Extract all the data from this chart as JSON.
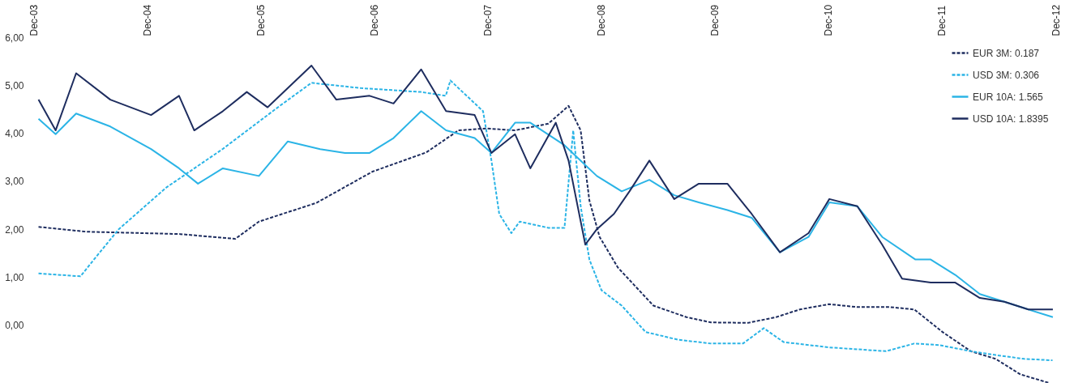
{
  "chart_data": {
    "type": "line",
    "legend": "top right",
    "grid": false,
    "xlim": [
      "2003-12-15",
      "2012-12-15"
    ],
    "ylim": [
      -1.2,
      6
    ],
    "yticks": [
      {
        "value": 0,
        "label": "0,00"
      },
      {
        "value": 1,
        "label": "1,00"
      },
      {
        "value": 2,
        "label": "2,00"
      },
      {
        "value": 3,
        "label": "3,00"
      },
      {
        "value": 4,
        "label": "4,00"
      },
      {
        "value": 5,
        "label": "5,00"
      },
      {
        "value": 6,
        "label": "6,00"
      }
    ],
    "xticks": [
      {
        "value": "2003-12-15",
        "label": "Dec-03"
      },
      {
        "value": "2004-12-15",
        "label": "Dec-04"
      },
      {
        "value": "2005-12-15",
        "label": "Dec-05"
      },
      {
        "value": "2006-12-15",
        "label": "Dec-06"
      },
      {
        "value": "2007-12-15",
        "label": "Dec-07"
      },
      {
        "value": "2008-12-15",
        "label": "Dec-08"
      },
      {
        "value": "2009-12-15",
        "label": "Dec-09"
      },
      {
        "value": "2010-12-15",
        "label": "Dec-10"
      },
      {
        "value": "2011-12-15",
        "label": "Dec-11"
      },
      {
        "value": "2012-12-15",
        "label": "Dec-12"
      }
    ],
    "series": [
      {
        "name": "EUR 3M: 0.187",
        "color": "#1e2d5f",
        "line_style": "dashed",
        "x": [
          "2004-01-01",
          "2004-06-01",
          "2005-04-01",
          "2005-09-25",
          "2005-12-10",
          "2006-06-13",
          "2006-12-10",
          "2007-06-01",
          "2007-09-13",
          "2007-12-10",
          "2008-03-13",
          "2008-06-28",
          "2008-09-01",
          "2008-10-10",
          "2008-11-07",
          "2008-12-10",
          "2009-02-07",
          "2009-06-01",
          "2009-09-15",
          "2009-12-03",
          "2010-04-01",
          "2010-07-01",
          "2010-09-15",
          "2010-12-18",
          "2011-03-18",
          "2011-07-01",
          "2011-09-18",
          "2011-12-18",
          "2012-03-18",
          "2012-06-06",
          "2012-08-24",
          "2012-11-24"
        ],
        "values": [
          2.05,
          1.95,
          1.9,
          1.8,
          2.16,
          2.55,
          3.2,
          3.6,
          4.06,
          4.1,
          4.06,
          4.2,
          4.57,
          4.06,
          2.6,
          1.84,
          1.2,
          0.41,
          0.17,
          0.06,
          0.05,
          0.17,
          0.33,
          0.44,
          0.38,
          0.38,
          0.33,
          -0.14,
          -0.54,
          -0.7,
          -1.02,
          -1.2
        ]
      },
      {
        "name": "USD 3M: 0.306",
        "color": "#2bb4e6",
        "line_style": "dashed",
        "x": [
          "2004-01-01",
          "2004-05-15",
          "2004-07-01",
          "2004-09-15",
          "2005-02-15",
          "2005-08-15",
          "2006-02-15",
          "2006-05-28",
          "2006-11-03",
          "2007-05-15",
          "2007-08-03",
          "2007-08-18",
          "2007-09-13",
          "2007-12-01",
          "2007-12-28",
          "2008-01-22",
          "2008-03-01",
          "2008-03-28",
          "2008-06-28",
          "2008-08-19",
          "2008-09-16",
          "2008-10-10",
          "2008-11-07",
          "2008-12-16",
          "2009-02-19",
          "2009-05-07",
          "2009-08-19",
          "2009-12-03",
          "2010-03-16",
          "2010-05-22",
          "2010-07-25",
          "2010-12-18",
          "2011-06-19",
          "2011-09-18",
          "2011-12-06",
          "2012-03-18",
          "2012-06-06",
          "2012-09-06",
          "2012-12-06"
        ],
        "values": [
          1.08,
          1.02,
          1.4,
          2.0,
          2.87,
          3.67,
          4.57,
          5.05,
          4.94,
          4.86,
          4.78,
          5.1,
          4.94,
          4.46,
          3.43,
          2.32,
          1.92,
          2.16,
          2.03,
          2.03,
          4.06,
          2.48,
          1.37,
          0.73,
          0.41,
          -0.14,
          -0.3,
          -0.38,
          -0.38,
          -0.06,
          -0.35,
          -0.46,
          -0.54,
          -0.38,
          -0.41,
          -0.54,
          -0.62,
          -0.7,
          -0.73
        ]
      },
      {
        "name": "EUR 10A: 1.565",
        "color": "#2bb4e6",
        "line_style": "solid",
        "x": [
          "2004-01-01",
          "2004-02-25",
          "2004-05-01",
          "2004-08-19",
          "2004-12-28",
          "2005-03-28",
          "2005-05-28",
          "2005-08-16",
          "2005-12-10",
          "2006-03-13",
          "2006-06-25",
          "2006-09-13",
          "2006-12-01",
          "2007-02-16",
          "2007-05-16",
          "2007-08-04",
          "2007-11-04",
          "2007-12-28",
          "2008-03-13",
          "2008-05-01",
          "2008-08-19",
          "2008-10-10",
          "2008-12-01",
          "2009-02-19",
          "2009-05-19",
          "2009-08-07",
          "2009-10-25",
          "2010-01-25",
          "2010-04-13",
          "2010-07-13",
          "2010-10-13",
          "2010-12-19",
          "2011-03-19",
          "2011-06-07",
          "2011-09-22",
          "2011-11-10",
          "2012-01-28",
          "2012-04-16",
          "2012-07-04",
          "2012-09-19",
          "2012-12-07"
        ],
        "values": [
          4.3,
          3.98,
          4.41,
          4.14,
          3.67,
          3.27,
          2.95,
          3.27,
          3.11,
          3.83,
          3.67,
          3.59,
          3.59,
          3.9,
          4.46,
          4.06,
          3.9,
          3.59,
          4.22,
          4.22,
          3.75,
          3.43,
          3.11,
          2.79,
          3.03,
          2.71,
          2.56,
          2.4,
          2.24,
          1.52,
          1.84,
          2.56,
          2.48,
          1.84,
          1.37,
          1.37,
          1.05,
          0.65,
          0.49,
          0.33,
          0.17
        ]
      },
      {
        "name": "USD 10A: 1.8395",
        "color": "#1e2d5f",
        "line_style": "solid",
        "x": [
          "2004-01-01",
          "2004-02-25",
          "2004-05-01",
          "2004-08-19",
          "2004-12-28",
          "2005-03-28",
          "2005-05-16",
          "2005-08-16",
          "2005-11-01",
          "2006-01-07",
          "2006-05-28",
          "2006-08-16",
          "2006-12-01",
          "2007-02-16",
          "2007-05-16",
          "2007-08-04",
          "2007-11-04",
          "2007-12-28",
          "2008-03-13",
          "2008-05-01",
          "2008-07-22",
          "2008-09-01",
          "2008-10-25",
          "2008-12-01",
          "2009-01-25",
          "2009-03-16",
          "2009-05-19",
          "2009-08-07",
          "2009-10-25",
          "2010-01-25",
          "2010-04-13",
          "2010-07-13",
          "2010-10-13",
          "2010-12-19",
          "2011-03-19",
          "2011-06-07",
          "2011-08-10",
          "2011-11-10",
          "2012-01-28",
          "2012-04-16",
          "2012-07-04",
          "2012-09-19",
          "2012-12-07"
        ],
        "values": [
          4.7,
          4.06,
          5.25,
          4.7,
          4.38,
          4.78,
          4.06,
          4.46,
          4.86,
          4.54,
          5.41,
          4.7,
          4.78,
          4.62,
          5.33,
          4.46,
          4.38,
          3.59,
          3.98,
          3.27,
          4.22,
          3.43,
          1.68,
          2.0,
          2.32,
          2.79,
          3.43,
          2.63,
          2.95,
          2.95,
          2.32,
          1.52,
          1.92,
          2.63,
          2.48,
          1.68,
          0.97,
          0.89,
          0.89,
          0.57,
          0.49,
          0.33,
          0.33
        ]
      }
    ]
  }
}
